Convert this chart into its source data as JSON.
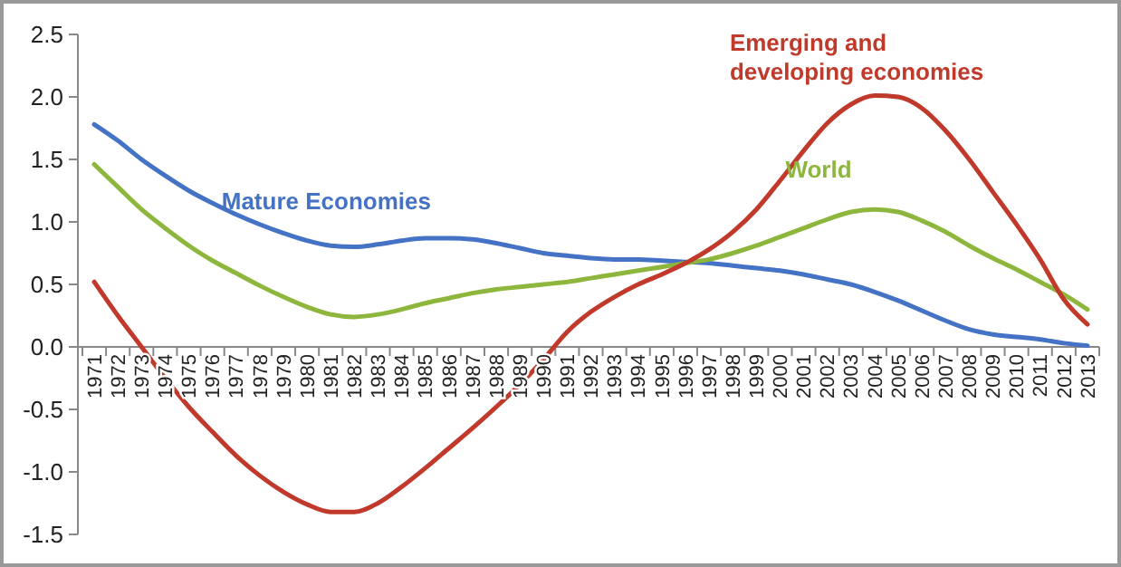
{
  "chart_data": {
    "type": "line",
    "categories": [
      "1971",
      "1972",
      "1973",
      "1974",
      "1975",
      "1976",
      "1977",
      "1978",
      "1979",
      "1980",
      "1981",
      "1982",
      "1983",
      "1984",
      "1985",
      "1986",
      "1987",
      "1988",
      "1989",
      "1990",
      "1991",
      "1992",
      "1993",
      "1994",
      "1995",
      "1996",
      "1997",
      "1998",
      "1999",
      "2000",
      "2001",
      "2002",
      "2003",
      "2004",
      "2005",
      "2006",
      "2007",
      "2008",
      "2009",
      "2010",
      "2011",
      "2012",
      "2013"
    ],
    "ylim": [
      -1.5,
      2.5
    ],
    "yticks": [
      {
        "value": -1.5,
        "label": "-1.5"
      },
      {
        "value": -1,
        "label": "-1.0"
      },
      {
        "value": -0.5,
        "label": "-0.5"
      },
      {
        "value": 0,
        "label": "0.0"
      },
      {
        "value": 0.5,
        "label": "0.5"
      },
      {
        "value": 1,
        "label": "1.0"
      },
      {
        "value": 1.5,
        "label": "1.5"
      },
      {
        "value": 2,
        "label": "2.0"
      },
      {
        "value": 2.5,
        "label": "2.5"
      }
    ],
    "grid": false,
    "marker": "none",
    "line_style": "solid",
    "series": [
      {
        "name": "Mature Economies",
        "color": "#4472c4",
        "values": [
          1.78,
          1.65,
          1.5,
          1.37,
          1.25,
          1.15,
          1.06,
          0.98,
          0.91,
          0.85,
          0.81,
          0.8,
          0.82,
          0.85,
          0.87,
          0.87,
          0.86,
          0.83,
          0.79,
          0.75,
          0.73,
          0.71,
          0.7,
          0.7,
          0.69,
          0.68,
          0.67,
          0.65,
          0.63,
          0.61,
          0.58,
          0.54,
          0.5,
          0.44,
          0.37,
          0.29,
          0.21,
          0.14,
          0.1,
          0.08,
          0.06,
          0.03,
          0.01
        ]
      },
      {
        "name": "World",
        "color": "#8db63c",
        "values": [
          1.46,
          1.28,
          1.1,
          0.95,
          0.81,
          0.69,
          0.59,
          0.49,
          0.4,
          0.32,
          0.26,
          0.24,
          0.26,
          0.3,
          0.35,
          0.39,
          0.43,
          0.46,
          0.48,
          0.5,
          0.52,
          0.55,
          0.58,
          0.61,
          0.64,
          0.67,
          0.7,
          0.75,
          0.81,
          0.88,
          0.95,
          1.02,
          1.08,
          1.1,
          1.08,
          1.01,
          0.92,
          0.81,
          0.71,
          0.62,
          0.52,
          0.42,
          0.3
        ]
      },
      {
        "name": "Emerging and developing economies",
        "color": "#c0392b",
        "values": [
          0.52,
          0.25,
          0.0,
          -0.25,
          -0.48,
          -0.68,
          -0.87,
          -1.03,
          -1.16,
          -1.26,
          -1.32,
          -1.32,
          -1.25,
          -1.12,
          -0.97,
          -0.81,
          -0.65,
          -0.48,
          -0.3,
          -0.1,
          0.12,
          0.28,
          0.4,
          0.5,
          0.58,
          0.67,
          0.78,
          0.92,
          1.1,
          1.33,
          1.57,
          1.79,
          1.94,
          2.01,
          2.0,
          1.91,
          1.73,
          1.5,
          1.24,
          0.98,
          0.7,
          0.38,
          0.18
        ]
      }
    ]
  }
}
